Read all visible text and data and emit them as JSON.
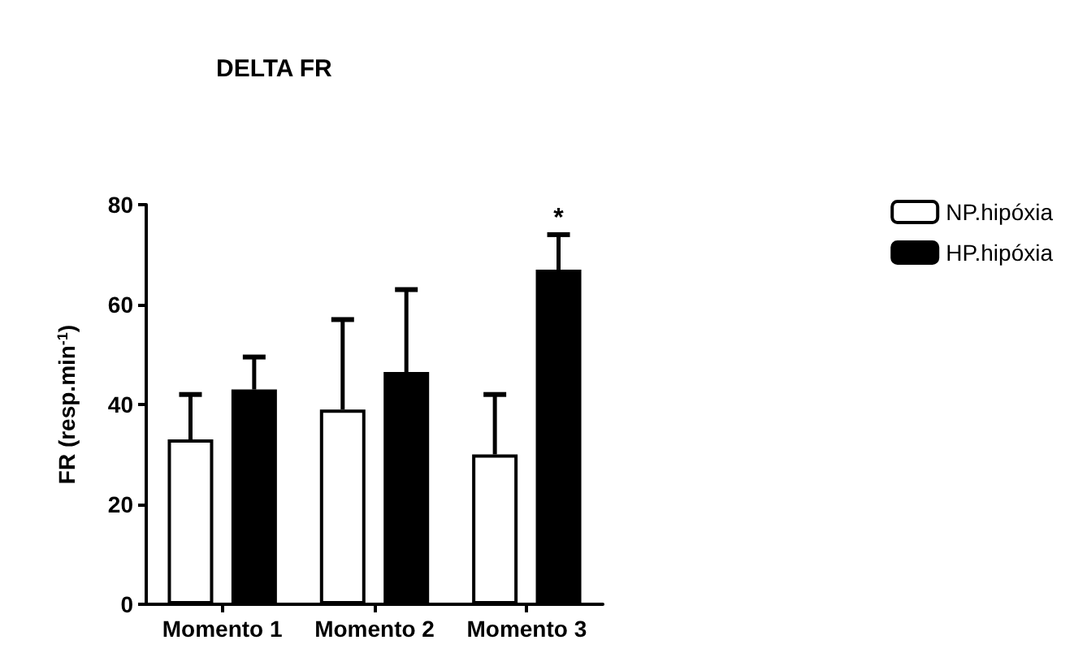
{
  "chart_data": {
    "type": "bar",
    "title": "DELTA FR",
    "ylabel": "FR (resp.min$^{-1}$)",
    "categories": [
      "Momento 1",
      "Momento 2",
      "Momento 3"
    ],
    "series": [
      {
        "name": "NP.hipóxia",
        "color": "#ffffff",
        "values": [
          33,
          39,
          30
        ],
        "errors": [
          [
            33,
            42
          ],
          [
            39,
            57
          ],
          [
            30,
            42
          ]
        ]
      },
      {
        "name": "HP.hipóxia",
        "color": "#000000",
        "values": [
          43,
          46.5,
          67
        ],
        "errors": [
          [
            43,
            49.5
          ],
          [
            46.5,
            63
          ],
          [
            67,
            74
          ]
        ]
      }
    ],
    "ylim": [
      0,
      80
    ],
    "yticks": [
      0,
      20,
      40,
      60,
      80
    ],
    "grid": false,
    "legend": "top right",
    "annotations": [
      "*"
    ]
  }
}
